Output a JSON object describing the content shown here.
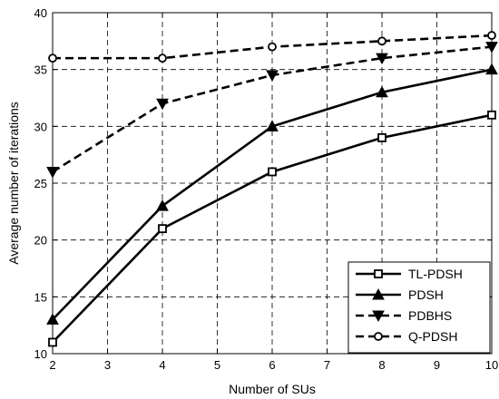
{
  "chart_data": {
    "type": "line",
    "xlabel": "Number of SUs",
    "ylabel": "Average number of iterations",
    "xlim": [
      2,
      10
    ],
    "ylim": [
      10,
      40
    ],
    "xticks": [
      2,
      3,
      4,
      5,
      6,
      7,
      8,
      9,
      10
    ],
    "yticks": [
      10,
      15,
      20,
      25,
      30,
      35,
      40
    ],
    "grid": true,
    "legend_position": "bottom-right",
    "x": [
      2,
      4,
      6,
      8,
      10
    ],
    "series": [
      {
        "name": "TL-PDSH",
        "marker": "square",
        "dash": "solid",
        "values": [
          11,
          21,
          26,
          29,
          31
        ]
      },
      {
        "name": "PDSH",
        "marker": "triangle-up",
        "dash": "solid",
        "values": [
          13,
          23,
          30,
          33,
          35
        ]
      },
      {
        "name": "PDBHS",
        "marker": "triangle-down",
        "dash": "dashed",
        "values": [
          26,
          32,
          34.5,
          36,
          37
        ]
      },
      {
        "name": "Q-PDSH",
        "marker": "circle",
        "dash": "dashed",
        "values": [
          36,
          36,
          37,
          37.5,
          38
        ]
      }
    ]
  }
}
